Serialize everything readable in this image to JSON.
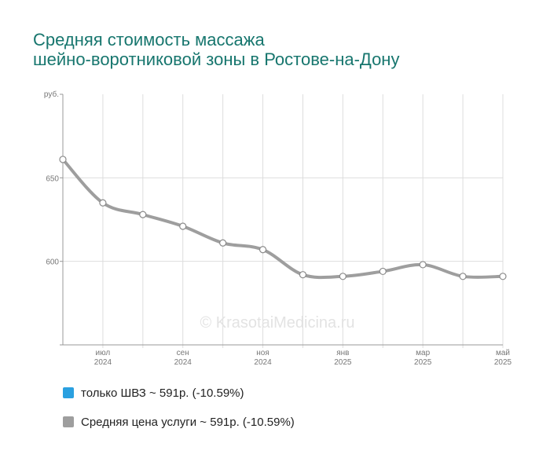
{
  "title_lines": [
    "Средняя стоимость массажа",
    "шейно-воротниковой зоны в Ростове-на-Дону"
  ],
  "watermark": "© KrasotaiMedicina.ru",
  "legend": [
    {
      "label": "только ШВЗ ~ 591р. (-10.59%)",
      "color": "#2aa0e0"
    },
    {
      "label": "Средняя цена услуги ~ 591р. (-10.59%)",
      "color": "#9e9e9e"
    }
  ],
  "chart_data": {
    "type": "line",
    "title": "Средняя стоимость массажа шейно-воротниковой зоны в Ростове-на-Дону",
    "ylabel": "руб.",
    "ylim": [
      550,
      700
    ],
    "yticks": [
      600,
      650
    ],
    "grid": true,
    "x": [
      "2024-06",
      "2024-07",
      "2024-08",
      "2024-09",
      "2024-10",
      "2024-11",
      "2024-12",
      "2025-01",
      "2025-02",
      "2025-03",
      "2025-04",
      "2025-05"
    ],
    "xtick_labels": [
      {
        "x": "2024-07",
        "month": "июл",
        "year": "2024"
      },
      {
        "x": "2024-09",
        "month": "сен",
        "year": "2024"
      },
      {
        "x": "2024-11",
        "month": "ноя",
        "year": "2024"
      },
      {
        "x": "2025-01",
        "month": "янв",
        "year": "2025"
      },
      {
        "x": "2025-03",
        "month": "мар",
        "year": "2025"
      },
      {
        "x": "2025-05",
        "month": "май",
        "year": "2025"
      }
    ],
    "series": [
      {
        "name": "только ШВЗ ~ 591р. (-10.59%)",
        "color": "#2aa0e0",
        "values": [
          661,
          635,
          628,
          621,
          611,
          607,
          592,
          591,
          594,
          598,
          591,
          591
        ]
      },
      {
        "name": "Средняя цена услуги ~ 591р. (-10.59%)",
        "color": "#9e9e9e",
        "values": [
          661,
          635,
          628,
          621,
          611,
          607,
          592,
          591,
          594,
          598,
          591,
          591
        ]
      }
    ]
  }
}
